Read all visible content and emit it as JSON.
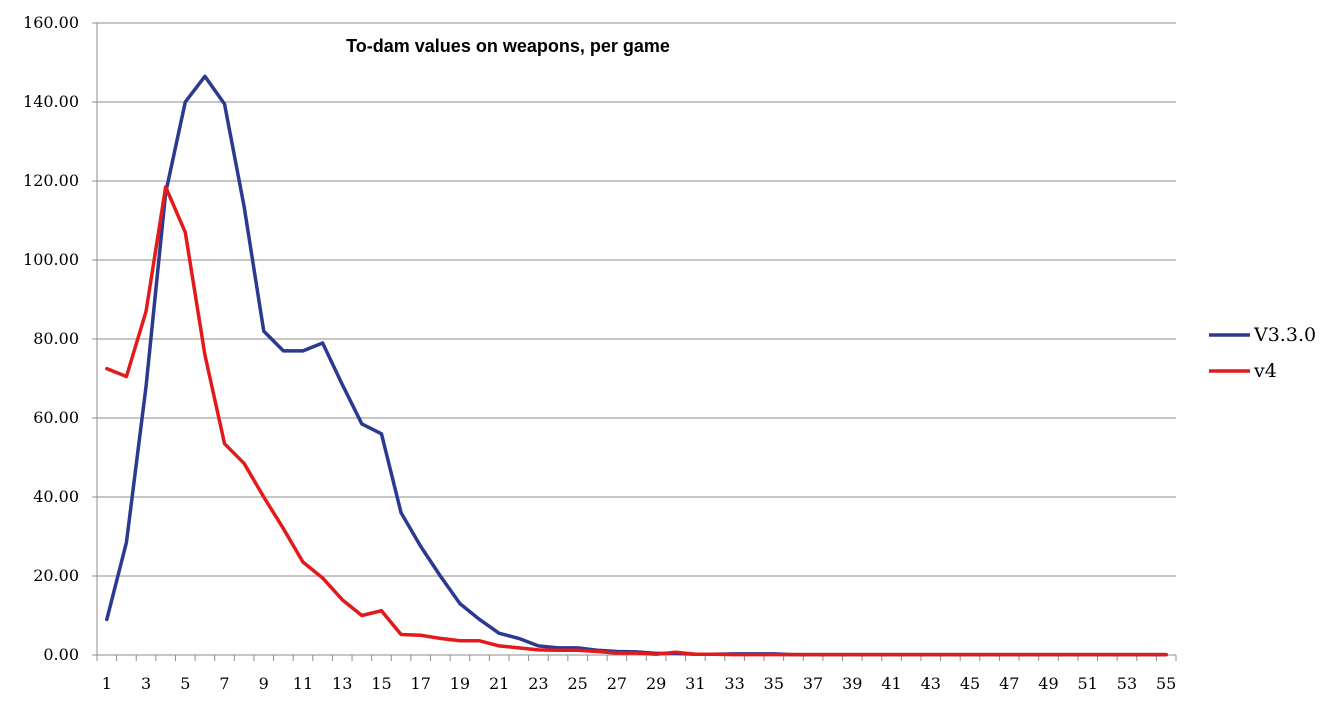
{
  "chart_data": {
    "type": "line",
    "title": "To-dam values on weapons, per game",
    "xlabel": "",
    "ylabel": "",
    "ylim": [
      0,
      160
    ],
    "y_ticks": [
      "0.00",
      "20.00",
      "40.00",
      "60.00",
      "80.00",
      "100.00",
      "120.00",
      "140.00",
      "160.00"
    ],
    "x_tick_labels": [
      "1",
      "3",
      "5",
      "7",
      "9",
      "11",
      "13",
      "15",
      "17",
      "19",
      "21",
      "23",
      "25",
      "27",
      "29",
      "31",
      "33",
      "35",
      "37",
      "39",
      "41",
      "43",
      "45",
      "47",
      "49",
      "51",
      "53",
      "55"
    ],
    "x": [
      1,
      2,
      3,
      4,
      5,
      6,
      7,
      8,
      9,
      10,
      11,
      12,
      13,
      14,
      15,
      16,
      17,
      18,
      19,
      20,
      21,
      22,
      23,
      24,
      25,
      26,
      27,
      28,
      29,
      30,
      31,
      32,
      33,
      34,
      35,
      36,
      37,
      38,
      39,
      40,
      41,
      42,
      43,
      44,
      45,
      46,
      47,
      48,
      49,
      50,
      51,
      52,
      53,
      54,
      55
    ],
    "grid": true,
    "legend_position": "right",
    "series": [
      {
        "name": "V3.3.0",
        "color": "#2b3990",
        "values": [
          9,
          28.5,
          68,
          117,
          140,
          146.5,
          139.5,
          113.5,
          82,
          77,
          77,
          79,
          68.5,
          58.5,
          56,
          36,
          27.5,
          20,
          13,
          9,
          5.5,
          4.2,
          2.3,
          1.8,
          1.8,
          1.2,
          0.9,
          0.8,
          0.4,
          0.4,
          0.2,
          0.2,
          0.3,
          0.3,
          0.3,
          0.1,
          0.1,
          0.1,
          0.1,
          0.1,
          0.1,
          0.1,
          0.1,
          0.1,
          0.1,
          0.1,
          0.1,
          0.1,
          0.1,
          0.1,
          0.1,
          0.1,
          0.1,
          0.1,
          0.1
        ]
      },
      {
        "name": "v4",
        "color": "#e31a1c",
        "values": [
          72.5,
          70.5,
          87,
          118.5,
          107,
          76,
          53.5,
          48.5,
          40,
          32,
          23.5,
          19.5,
          14,
          10,
          11.2,
          5.2,
          5,
          4.2,
          3.6,
          3.6,
          2.3,
          1.8,
          1.3,
          1.2,
          1.2,
          0.9,
          0.5,
          0.5,
          0.2,
          0.7,
          0.2,
          0.2,
          0.1,
          0.1,
          0.1,
          0.1,
          0.1,
          0.1,
          0.1,
          0.1,
          0.1,
          0.1,
          0.1,
          0.1,
          0.1,
          0.1,
          0.1,
          0.1,
          0.1,
          0.1,
          0.1,
          0.1,
          0.1,
          0.1,
          0.1
        ]
      }
    ]
  }
}
